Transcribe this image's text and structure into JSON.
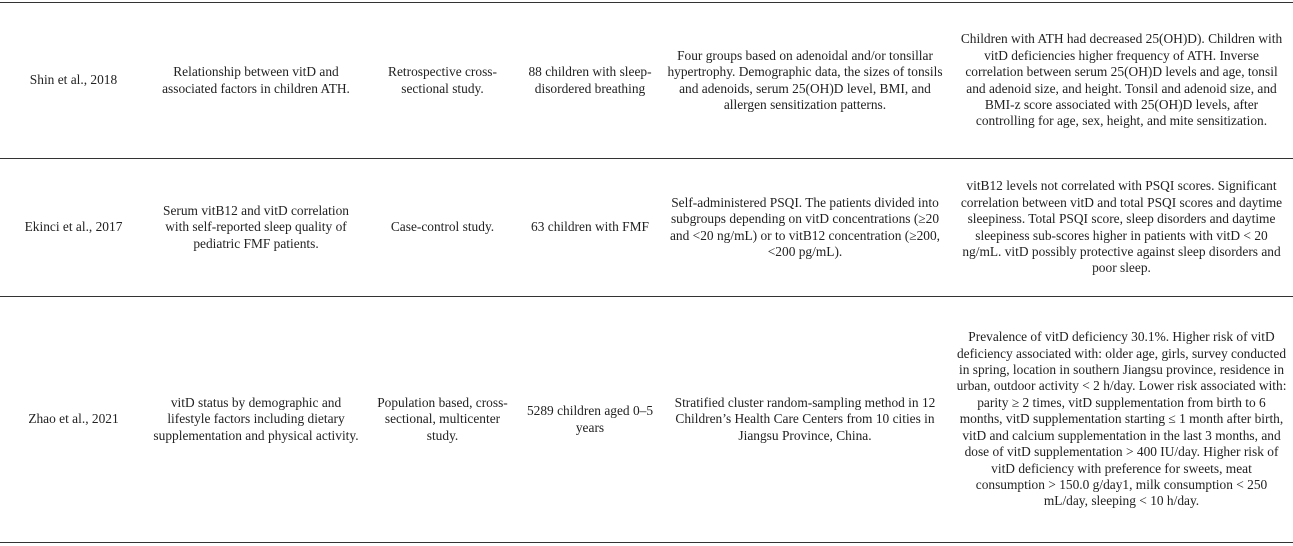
{
  "table": {
    "rows": [
      [
        "Shin et al., 2018",
        "Relationship between vitD and associated factors in children ATH.",
        "Retrospective cross-sectional study.",
        "88 children with sleep-disordered breathing",
        "Four groups based on adenoidal and/or tonsillar hypertrophy. Demographic data, the sizes of tonsils and adenoids, serum 25(OH)D level, BMI, and allergen sensitization patterns.",
        "Children with ATH had decreased 25(OH)D). Children with vitD deficiencies higher frequency of ATH. Inverse correlation between serum 25(OH)D levels and age, tonsil and adenoid size, and height. Tonsil and adenoid size, and BMI-z score associated with 25(OH)D levels, after controlling for age, sex, height, and mite sensitization."
      ],
      [
        "Ekinci et al., 2017",
        "Serum vitB12 and vitD correlation with self-reported sleep quality of pediatric FMF patients.",
        "Case-control study.",
        "63 children with FMF",
        "Self-administered PSQI. The patients divided into subgroups depending on vitD concentrations (≥20 and <20 ng/mL) or to vitB12 concentration (≥200, <200 pg/mL).",
        "vitB12 levels not correlated with PSQI scores. Significant correlation between vitD and total PSQI scores and daytime sleepiness. Total PSQI score, sleep disorders and daytime sleepiness sub-scores higher in patients with vitD < 20 ng/mL. vitD possibly protective against sleep disorders and poor sleep."
      ],
      [
        "Zhao et al., 2021",
        "vitD status by demographic and lifestyle factors including dietary supplementation and physical activity.",
        "Population based, cross-sectional, multicenter study.",
        "5289 children aged 0–5 years",
        "Stratified cluster random-sampling method in 12 Children’s Health Care Centers from 10 cities in Jiangsu Province, China.",
        "Prevalence of vitD deficiency 30.1%. Higher risk of vitD deficiency associated with: older age, girls, survey conducted in spring, location in southern Jiangsu province, residence in urban, outdoor activity < 2 h/day. Lower risk associated with: parity ≥ 2 times, vitD supplementation from birth to 6 months, vitD supplementation starting ≤ 1 month after birth, vitD and calcium supplementation in the last 3 months, and dose of vitD supplementation > 400 IU/day. Higher risk of vitD deficiency with preference for sweets, meat consumption > 150.0 g/day1, milk consumption < 250 mL/day, sleeping < 10 h/day."
      ]
    ]
  }
}
